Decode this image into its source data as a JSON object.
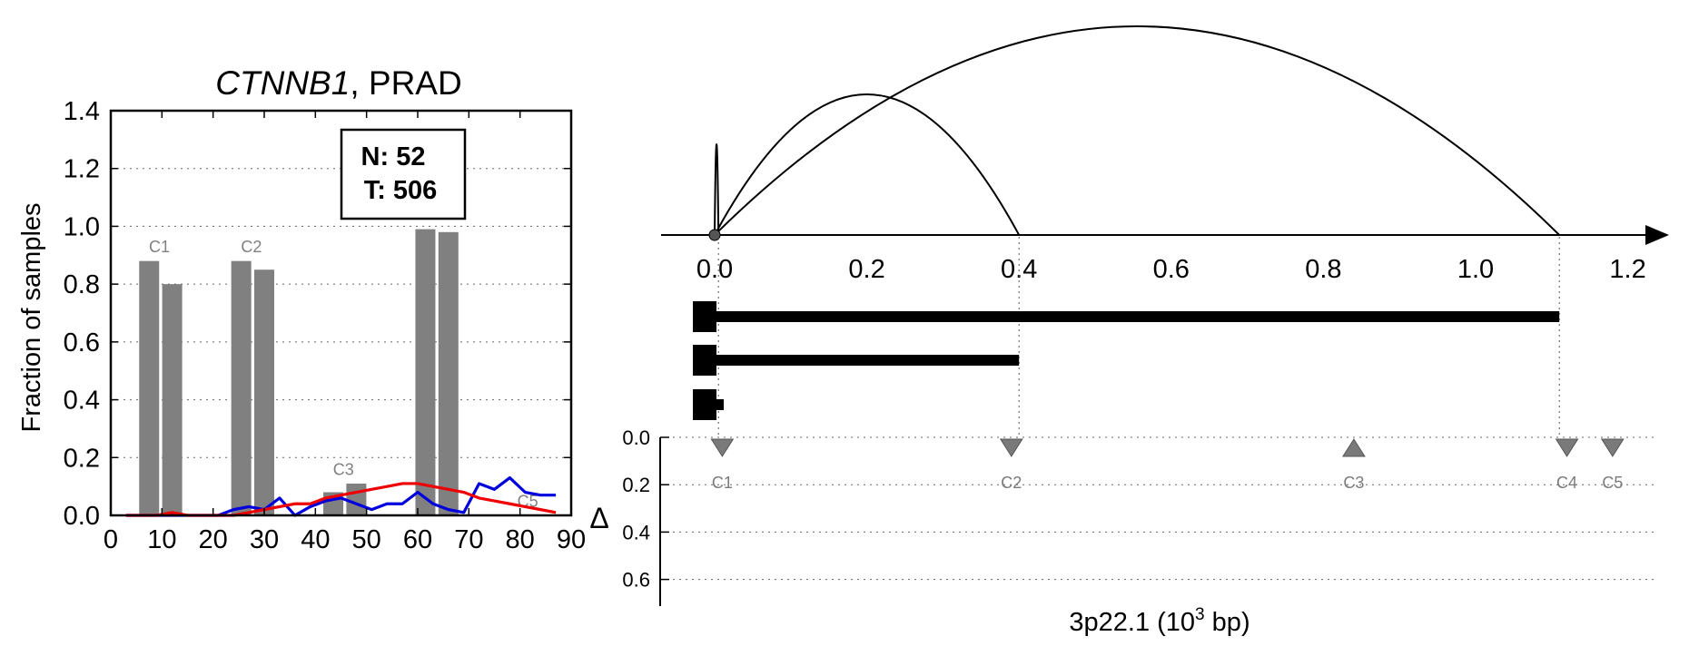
{
  "chart_data": [
    {
      "type": "bar",
      "title_gene": "CTNNB1",
      "title_rest": ", PRAD",
      "xlabel": "",
      "ylabel": "Fraction of samples",
      "xlim": [
        0,
        90
      ],
      "ylim": [
        0,
        1.4
      ],
      "xticks": [
        "0",
        "10",
        "20",
        "30",
        "40",
        "50",
        "60",
        "70",
        "80",
        "90"
      ],
      "yticks": [
        "0.0",
        "0.2",
        "0.4",
        "0.6",
        "0.8",
        "1.0",
        "1.2",
        "1.4"
      ],
      "grid": true,
      "legend_box": {
        "line1": "N: 52",
        "line2": "T: 506"
      },
      "bars": [
        {
          "x": 7.5,
          "value": 0.88
        },
        {
          "x": 12,
          "value": 0.8
        },
        {
          "x": 25.5,
          "value": 0.88
        },
        {
          "x": 30,
          "value": 0.85
        },
        {
          "x": 43.5,
          "value": 0.08
        },
        {
          "x": 48,
          "value": 0.11
        },
        {
          "x": 61.5,
          "value": 0.99
        },
        {
          "x": 66,
          "value": 0.98
        }
      ],
      "bar_labels": [
        {
          "text": "C1",
          "x": 9.5,
          "y": 0.91
        },
        {
          "text": "C2",
          "x": 27.5,
          "y": 0.91
        },
        {
          "text": "C3",
          "x": 45.5,
          "y": 0.14
        },
        {
          "text": "C5",
          "x": 81.5,
          "y": 0.03
        }
      ],
      "series": [
        {
          "color": "#0000dd",
          "x": [
            3,
            6,
            9,
            12,
            15,
            18,
            21,
            24,
            27,
            30,
            33,
            36,
            39,
            42,
            45,
            48,
            51,
            54,
            57,
            60,
            63,
            66,
            69,
            72,
            75,
            78,
            81,
            84,
            87
          ],
          "y": [
            0,
            0,
            0,
            0,
            0,
            0,
            0,
            0.02,
            0.03,
            0.02,
            0.06,
            0,
            0.03,
            0.05,
            0.06,
            0.04,
            0.02,
            0.04,
            0.04,
            0.08,
            0.04,
            0.02,
            0.01,
            0.11,
            0.09,
            0.13,
            0.08,
            0.07,
            0.07
          ]
        },
        {
          "color": "#ee0000",
          "x": [
            3,
            6,
            9,
            12,
            15,
            18,
            21,
            24,
            27,
            30,
            33,
            36,
            39,
            42,
            45,
            48,
            51,
            54,
            57,
            60,
            63,
            66,
            69,
            72,
            75,
            78,
            81,
            84,
            87
          ],
          "y": [
            0,
            0,
            0,
            0.01,
            0,
            0,
            0,
            0,
            0.01,
            0.02,
            0.03,
            0.04,
            0.04,
            0.06,
            0.07,
            0.08,
            0.09,
            0.1,
            0.11,
            0.11,
            0.1,
            0.09,
            0.08,
            0.06,
            0.05,
            0.04,
            0.03,
            0.02,
            0.01
          ]
        }
      ]
    },
    {
      "type": "arc-diagram",
      "xlabel_main": "3p22.1 (10",
      "xlabel_sup": "3",
      "xlabel_end": " bp)",
      "xlim": [
        -0.07,
        1.2
      ],
      "xticks": [
        "0.0",
        "0.2",
        "0.4",
        "0.6",
        "0.8",
        "1.0",
        "1.2"
      ],
      "arcs": [
        {
          "start": 0.0,
          "end": 0.005,
          "height": 1.0
        },
        {
          "start": 0.0,
          "end": 0.4,
          "height": 1.55
        },
        {
          "start": 0.0,
          "end": 1.11,
          "height": 2.3
        }
      ],
      "tracks": [
        {
          "start": -0.01,
          "end": 1.11
        },
        {
          "start": -0.01,
          "end": 0.4
        },
        {
          "start": -0.01,
          "end": 0.01
        }
      ],
      "dotted_refs": [
        0.005,
        0.4,
        1.11
      ],
      "delta_axis": {
        "label": "Δ",
        "ylim": [
          0,
          0.7
        ],
        "yticks": [
          "0.0",
          "0.2",
          "0.4",
          "0.6"
        ]
      },
      "markers": [
        {
          "label": "C1",
          "x": 0.01,
          "direction": "down"
        },
        {
          "label": "C2",
          "x": 0.39,
          "direction": "down"
        },
        {
          "label": "C3",
          "x": 0.84,
          "direction": "up"
        },
        {
          "label": "C4",
          "x": 1.12,
          "direction": "down"
        },
        {
          "label": "C5",
          "x": 1.18,
          "direction": "down"
        }
      ]
    }
  ]
}
